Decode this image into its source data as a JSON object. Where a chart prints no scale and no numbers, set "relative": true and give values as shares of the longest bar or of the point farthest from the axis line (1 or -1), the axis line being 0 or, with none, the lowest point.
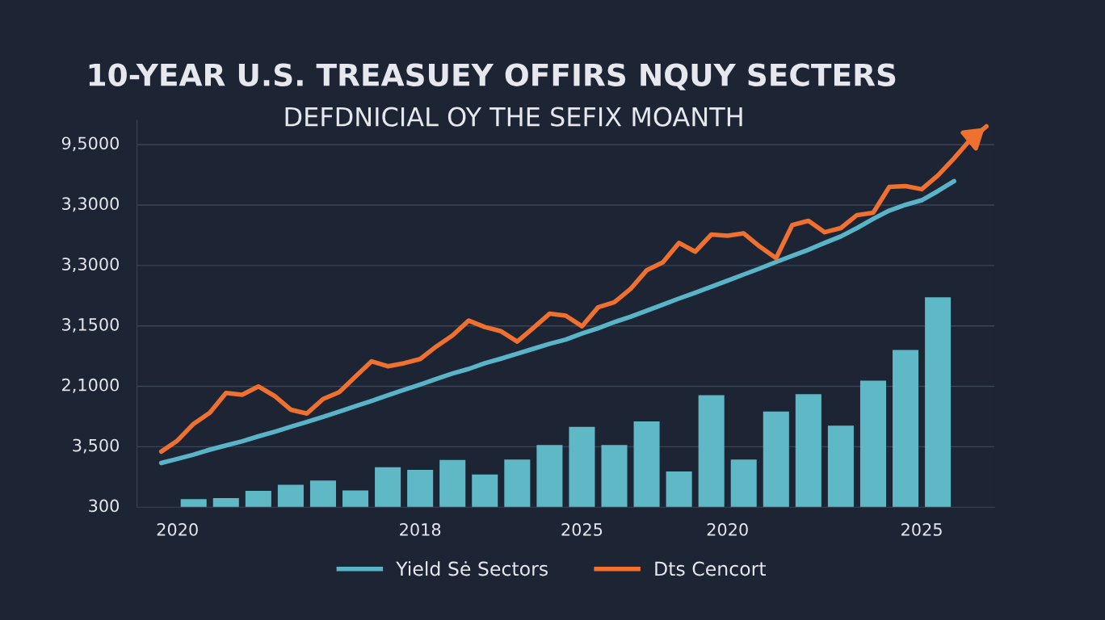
{
  "chart_data": {
    "type": "bar",
    "title": "10-YEAR U.S. TREASUEY OFFIRS NQUY SECTERS",
    "subtitle": "DEFDNICIAL OY THE SEFIX MOANTH",
    "relative": true,
    "categories": [
      null,
      null,
      "2020",
      null,
      null,
      null,
      null,
      null,
      null,
      null,
      null,
      null,
      null,
      null,
      null,
      null,
      null,
      "2018",
      null,
      null,
      null,
      null,
      null,
      null,
      null,
      null,
      null,
      "2025",
      null,
      null,
      null,
      null,
      null,
      null,
      null,
      null,
      "2020",
      null,
      null,
      null,
      null,
      null,
      null,
      null,
      null,
      null,
      null,
      null,
      "2025",
      null,
      null,
      null,
      null
    ],
    "annotations": [
      "300",
      "3,500",
      "2,1000",
      "3,1500",
      "3,3000",
      "3,3000",
      "9,5000"
    ],
    "grid": "y",
    "legend": "bottom",
    "series": [
      {
        "color": "#5fb8c6",
        "values": [
          null,
          null,
          null,
          0.021,
          null,
          0.024,
          null,
          0.043,
          null,
          0.059,
          null,
          0.07,
          null,
          0.044,
          null,
          0.105,
          null,
          0.098,
          null,
          0.124,
          null,
          0.086,
          null,
          0.125,
          null,
          0.163,
          null,
          0.211,
          null,
          0.163,
          null,
          0.225,
          null,
          0.094,
          null,
          0.294,
          null,
          0.125,
          null,
          0.251,
          null,
          0.297,
          null,
          0.214,
          null,
          0.332,
          null,
          0.413,
          null,
          0.551,
          null,
          null,
          null
        ]
      },
      {
        "type": "line",
        "name": "Yield Sė Sectors",
        "color": "#5ab4c8",
        "values": [
          null,
          0.116,
          0.127,
          0.138,
          0.151,
          0.162,
          0.173,
          0.186,
          0.198,
          0.211,
          0.224,
          0.237,
          0.251,
          0.265,
          0.279,
          0.294,
          0.308,
          0.322,
          0.337,
          0.351,
          0.363,
          0.378,
          0.39,
          0.403,
          0.416,
          0.429,
          0.44,
          0.456,
          0.47,
          0.486,
          0.5,
          0.516,
          0.532,
          0.548,
          0.563,
          0.579,
          0.595,
          0.611,
          0.627,
          0.644,
          0.66,
          0.676,
          0.694,
          0.711,
          0.733,
          0.757,
          0.779,
          0.794,
          0.806,
          0.83,
          0.856,
          null,
          null
        ]
      },
      {
        "type": "line",
        "name": "Dts Cencort",
        "color": "#f07030",
        "values": [
          null,
          0.146,
          0.175,
          0.219,
          0.248,
          0.3,
          0.295,
          0.317,
          0.292,
          0.256,
          0.246,
          0.284,
          0.302,
          0.343,
          0.383,
          0.37,
          0.378,
          0.389,
          0.422,
          0.451,
          0.49,
          0.473,
          0.462,
          0.435,
          0.471,
          0.508,
          0.503,
          0.475,
          0.525,
          0.538,
          0.573,
          0.622,
          0.643,
          0.694,
          0.671,
          0.716,
          0.713,
          0.719,
          0.684,
          0.654,
          0.741,
          0.752,
          0.722,
          0.733,
          0.767,
          0.773,
          0.841,
          0.843,
          0.835,
          0.871,
          0.916,
          0.965,
          1
        ]
      }
    ]
  }
}
